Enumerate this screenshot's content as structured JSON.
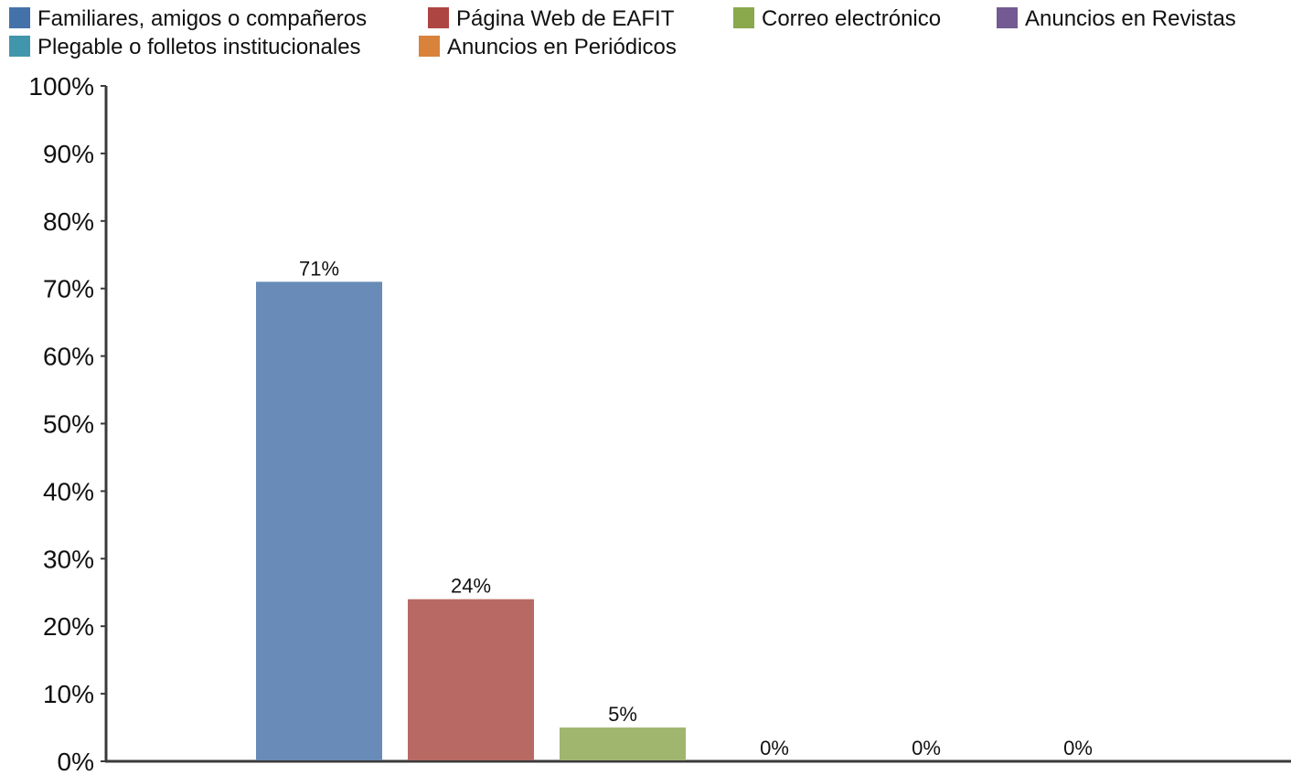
{
  "chart_data": {
    "type": "bar",
    "title": "",
    "xlabel": "",
    "ylabel": "",
    "ylim": [
      0,
      100
    ],
    "y_ticks": [
      "0%",
      "10%",
      "20%",
      "30%",
      "40%",
      "50%",
      "60%",
      "70%",
      "80%",
      "90%",
      "100%"
    ],
    "y_tick_values": [
      0,
      10,
      20,
      30,
      40,
      50,
      60,
      70,
      80,
      90,
      100
    ],
    "grid": false,
    "legend_position": "top",
    "series": [
      {
        "name": "Familiares, amigos o compañeros",
        "value": 71,
        "label": "71%",
        "color": "#688cb7"
      },
      {
        "name": "Página Web de EAFIT",
        "value": 24,
        "label": "24%",
        "color": "#b96963"
      },
      {
        "name": "Correo electrónico",
        "value": 5,
        "label": "5%",
        "color": "#a0b66f"
      },
      {
        "name": "Anuncios en Revistas",
        "value": 0,
        "label": "0%",
        "color": "#7e6296"
      },
      {
        "name": "Plegable o folletos institucionales",
        "value": 0,
        "label": "0%",
        "color": "#4aa4b6"
      },
      {
        "name": "Anuncios en Periódicos",
        "value": 0,
        "label": "0%",
        "color": "#dd8944"
      }
    ],
    "legend_colors": [
      "#4472a8",
      "#ad4542",
      "#8aa84c",
      "#735a92",
      "#4196ac",
      "#d9823c"
    ],
    "axis_color": "#3a3a3a"
  }
}
